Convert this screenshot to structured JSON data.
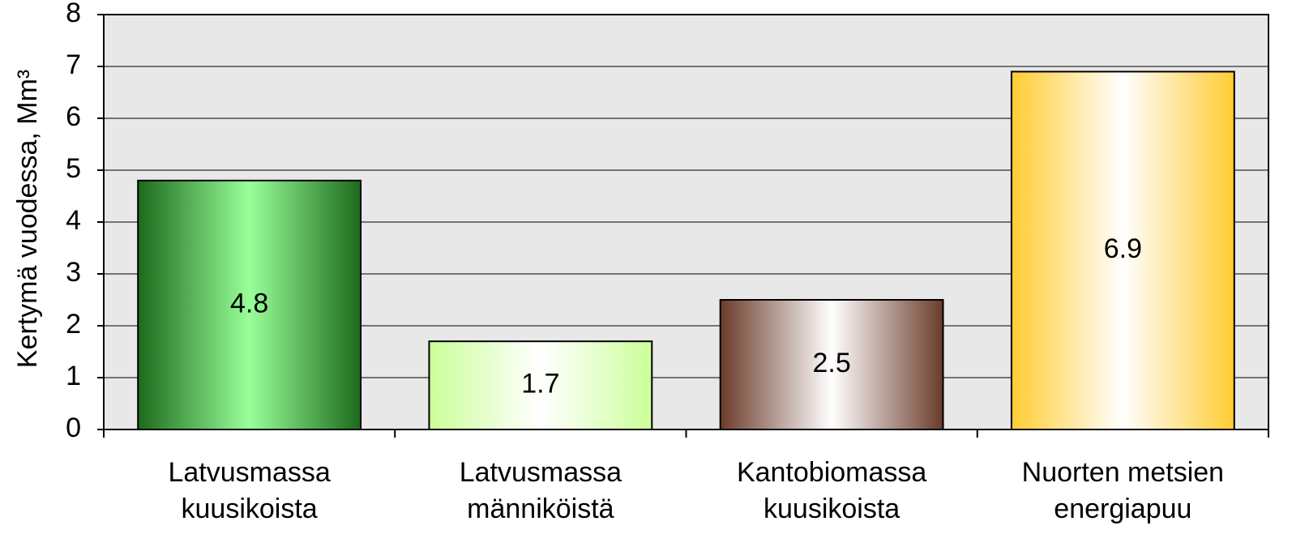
{
  "chart_data": {
    "type": "bar",
    "y_label": "Kertymä vuodessa, Mm³",
    "categories": [
      [
        "Latvusmassa",
        "kuusikoista"
      ],
      [
        "Latvusmassa",
        "männiköistä"
      ],
      [
        "Kantobiomassa",
        "kuusikoista"
      ],
      [
        "Nuorten metsien",
        "energiapuu"
      ]
    ],
    "values": [
      4.8,
      1.7,
      2.5,
      6.9
    ],
    "colors": [
      "#1c6a1c",
      "#ccff99",
      "#6b3b2a",
      "#ffcc33"
    ],
    "center_colors": [
      "#99ff99",
      "#ffffff",
      "#ffffff",
      "#ffffff"
    ],
    "ylim": [
      0,
      8
    ],
    "yticks": [
      0,
      1,
      2,
      3,
      4,
      5,
      6,
      7,
      8
    ],
    "grid": true
  }
}
